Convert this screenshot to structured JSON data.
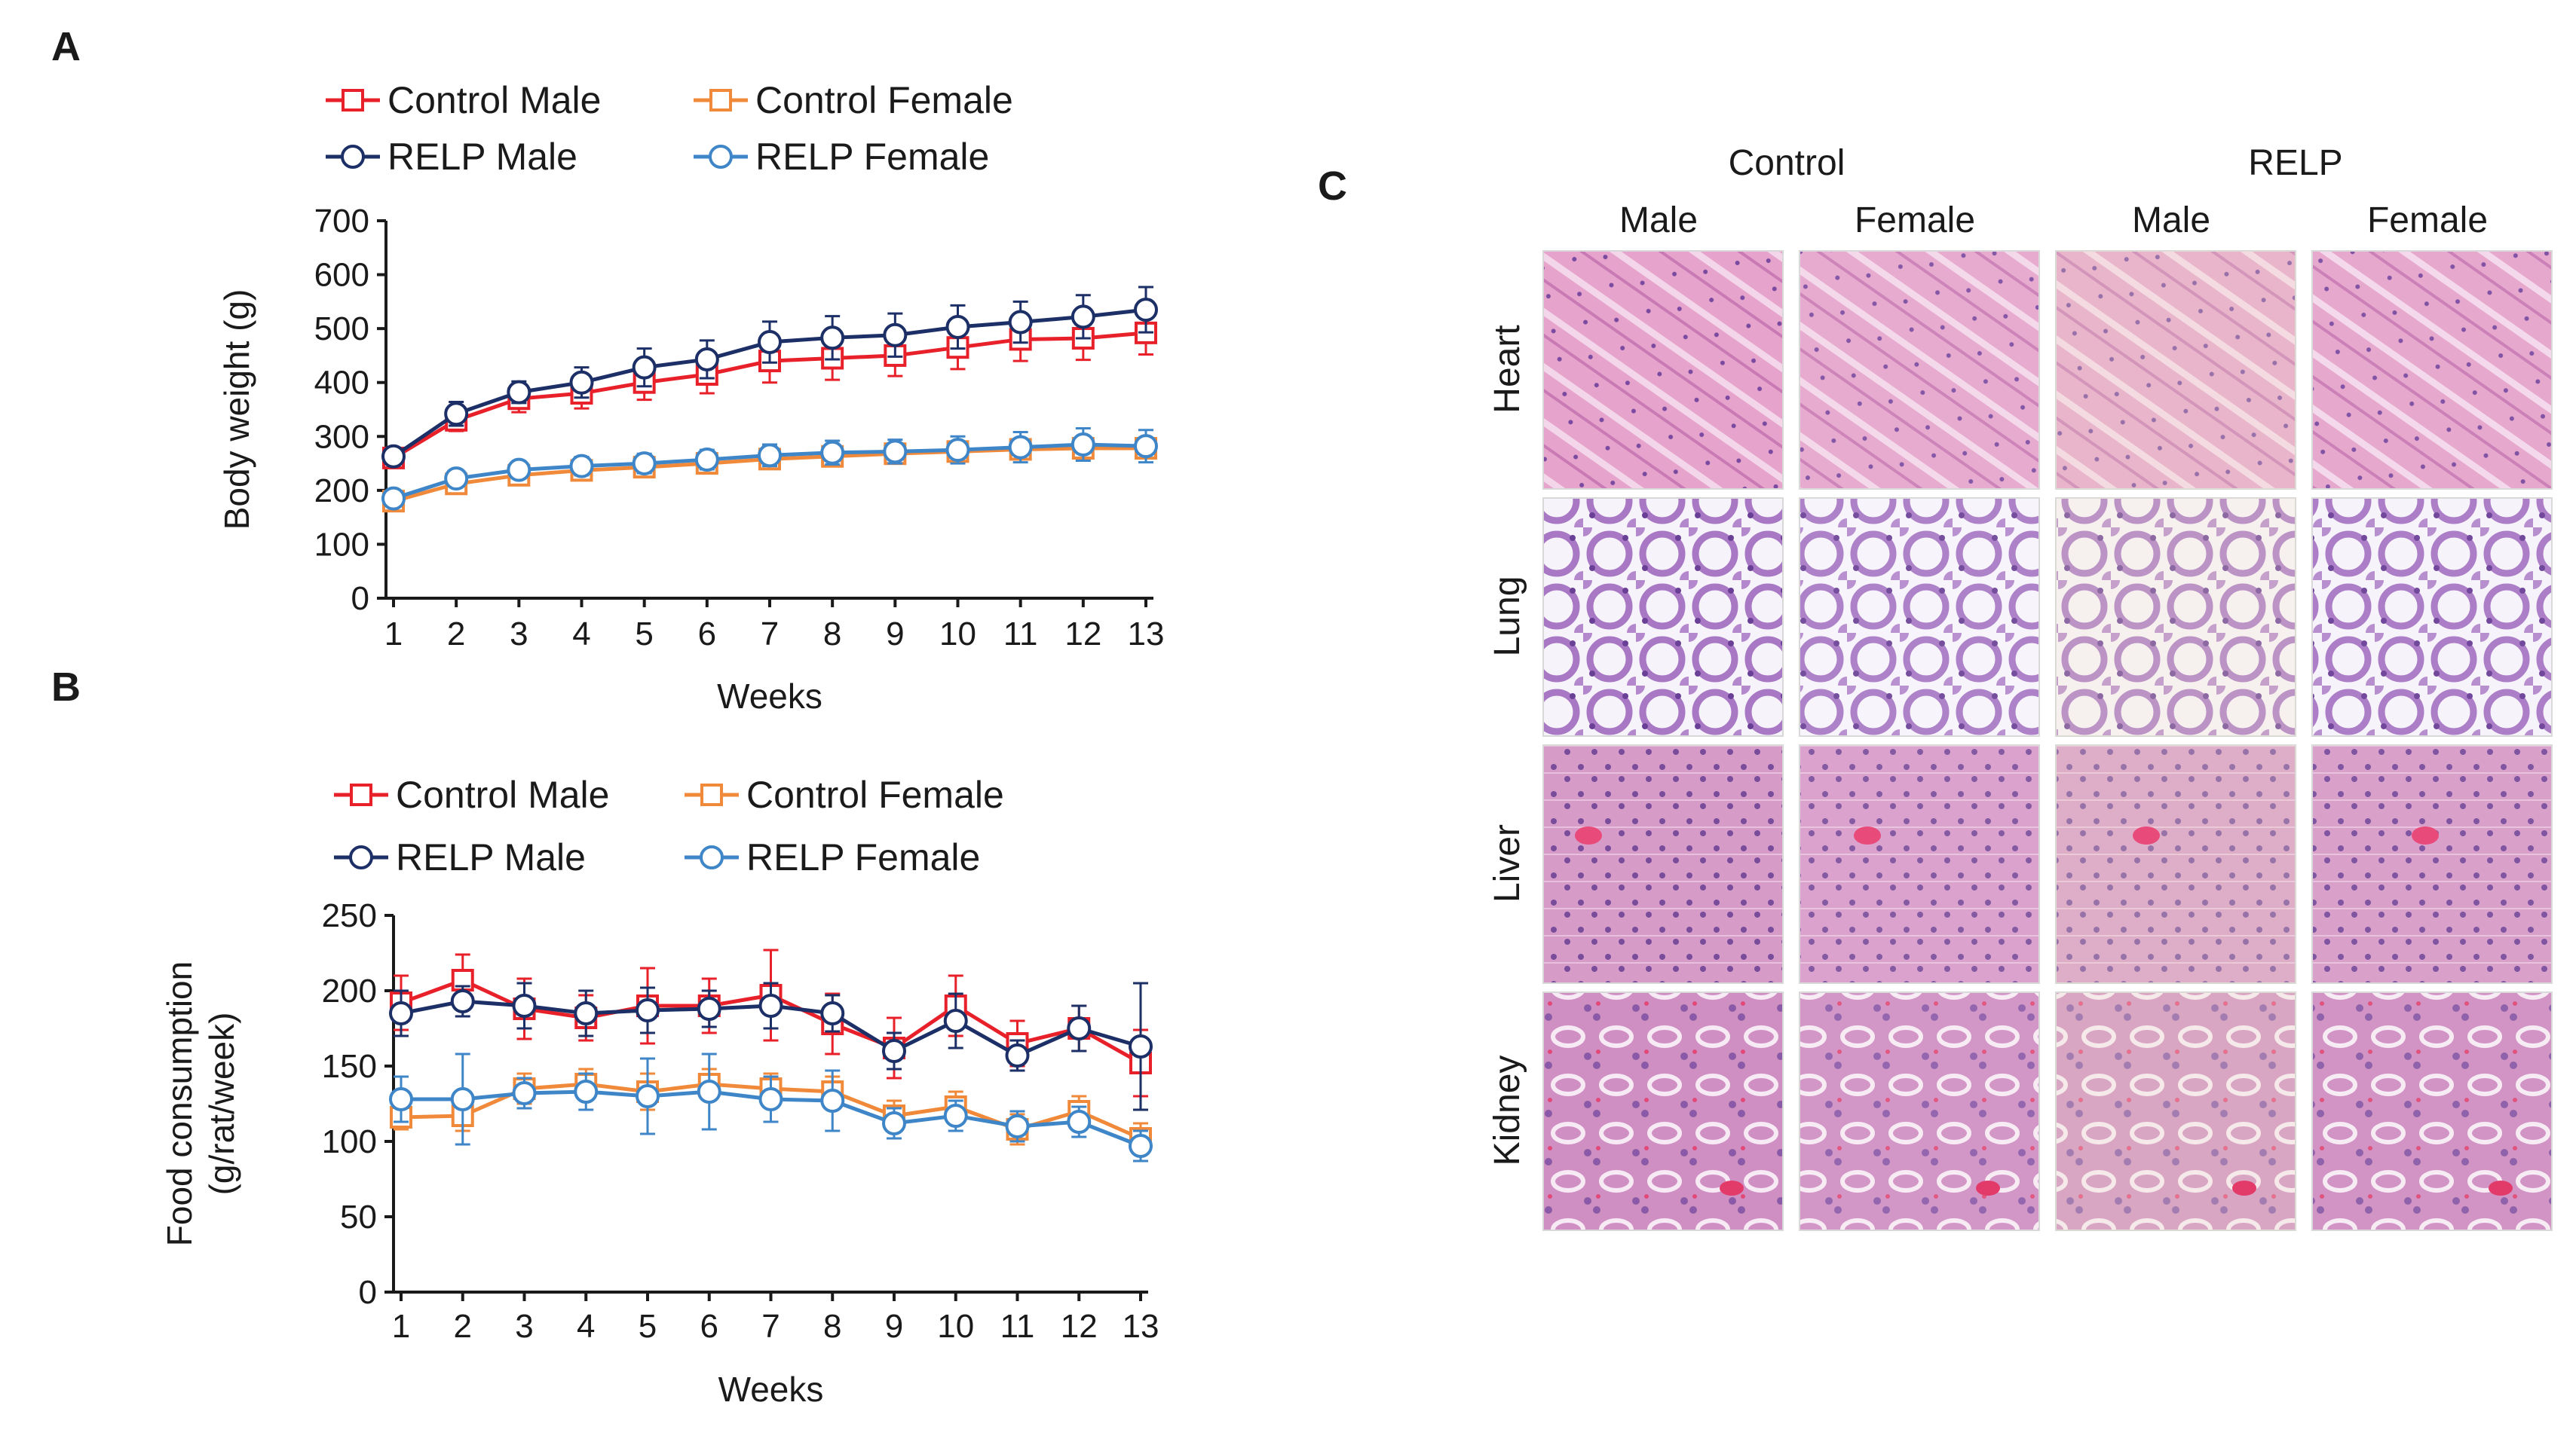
{
  "colors": {
    "control_male": "#e8202a",
    "control_female": "#f08a3a",
    "relp_male": "#1c2f66",
    "relp_female": "#3f86c8"
  },
  "chart_data": [
    {
      "panel": "A",
      "type": "line",
      "xlabel": "Weeks",
      "ylabel": "Body weight (g)",
      "ylim": [
        0,
        700
      ],
      "yticks": [
        0,
        100,
        200,
        300,
        400,
        500,
        600,
        700
      ],
      "x": [
        1,
        2,
        3,
        4,
        5,
        6,
        7,
        8,
        9,
        10,
        11,
        12,
        13
      ],
      "legend": {
        "position": "top",
        "entries": [
          "Control Male",
          "Control Female",
          "RELP Male",
          "RELP Female"
        ]
      },
      "series": [
        {
          "name": "Control Male",
          "marker": "square",
          "color_key": "control_male",
          "values": [
            260,
            330,
            370,
            380,
            400,
            415,
            440,
            445,
            450,
            465,
            480,
            482,
            492
          ],
          "errors": [
            12,
            20,
            25,
            28,
            32,
            35,
            40,
            40,
            38,
            40,
            40,
            40,
            40
          ]
        },
        {
          "name": "Control Female",
          "marker": "square",
          "color_key": "control_female",
          "values": [
            180,
            212,
            228,
            237,
            243,
            250,
            258,
            263,
            268,
            272,
            276,
            278,
            278
          ],
          "errors": [
            8,
            10,
            12,
            13,
            14,
            15,
            15,
            16,
            17,
            17,
            18,
            18,
            18
          ]
        },
        {
          "name": "RELP Male",
          "marker": "circle",
          "color_key": "relp_male",
          "values": [
            263,
            342,
            382,
            400,
            428,
            443,
            475,
            483,
            488,
            503,
            512,
            522,
            535
          ],
          "errors": [
            12,
            22,
            20,
            28,
            35,
            35,
            38,
            40,
            40,
            40,
            38,
            40,
            42
          ]
        },
        {
          "name": "RELP Female",
          "marker": "circle",
          "color_key": "relp_female",
          "values": [
            185,
            222,
            238,
            245,
            250,
            257,
            265,
            270,
            272,
            275,
            280,
            285,
            282
          ],
          "errors": [
            10,
            12,
            15,
            17,
            18,
            18,
            20,
            22,
            22,
            25,
            28,
            30,
            30
          ]
        }
      ]
    },
    {
      "panel": "B",
      "type": "line",
      "xlabel": "Weeks",
      "ylabel": [
        "Food consumption",
        "(g/rat/week)"
      ],
      "ylim": [
        0,
        250
      ],
      "yticks": [
        0,
        50,
        100,
        150,
        200,
        250
      ],
      "x": [
        1,
        2,
        3,
        4,
        5,
        6,
        7,
        8,
        9,
        10,
        11,
        12,
        13
      ],
      "legend": {
        "position": "top",
        "entries": [
          "Control Male",
          "Control Female",
          "RELP Male",
          "RELP Female"
        ]
      },
      "series": [
        {
          "name": "Control Male",
          "marker": "square",
          "color_key": "control_male",
          "values": [
            192,
            207,
            188,
            182,
            190,
            190,
            197,
            178,
            162,
            190,
            165,
            175,
            152
          ],
          "errors": [
            18,
            17,
            20,
            15,
            25,
            18,
            30,
            20,
            20,
            20,
            15,
            15,
            22
          ]
        },
        {
          "name": "Control Female",
          "marker": "square",
          "color_key": "control_female",
          "values": [
            116,
            117,
            135,
            138,
            133,
            138,
            135,
            133,
            117,
            123,
            108,
            120,
            102
          ],
          "errors": [
            8,
            10,
            10,
            10,
            12,
            10,
            10,
            10,
            10,
            10,
            10,
            10,
            10
          ]
        },
        {
          "name": "RELP Male",
          "marker": "circle",
          "color_key": "relp_male",
          "values": [
            185,
            193,
            190,
            185,
            187,
            188,
            190,
            185,
            160,
            180,
            157,
            175,
            163
          ],
          "errors": [
            15,
            10,
            15,
            15,
            15,
            12,
            15,
            12,
            12,
            18,
            10,
            15,
            42
          ]
        },
        {
          "name": "RELP Female",
          "marker": "circle",
          "color_key": "relp_female",
          "values": [
            128,
            128,
            132,
            133,
            130,
            133,
            128,
            127,
            112,
            117,
            110,
            113,
            97
          ],
          "errors": [
            15,
            30,
            10,
            12,
            25,
            25,
            15,
            20,
            10,
            10,
            10,
            10,
            10
          ]
        }
      ]
    }
  ],
  "panel_c": {
    "letter": "C",
    "groups": [
      "Control",
      "RELP"
    ],
    "columns": [
      "Male",
      "Female",
      "Male",
      "Female"
    ],
    "rows": [
      "Heart",
      "Lung",
      "Liver",
      "Kidney"
    ]
  }
}
